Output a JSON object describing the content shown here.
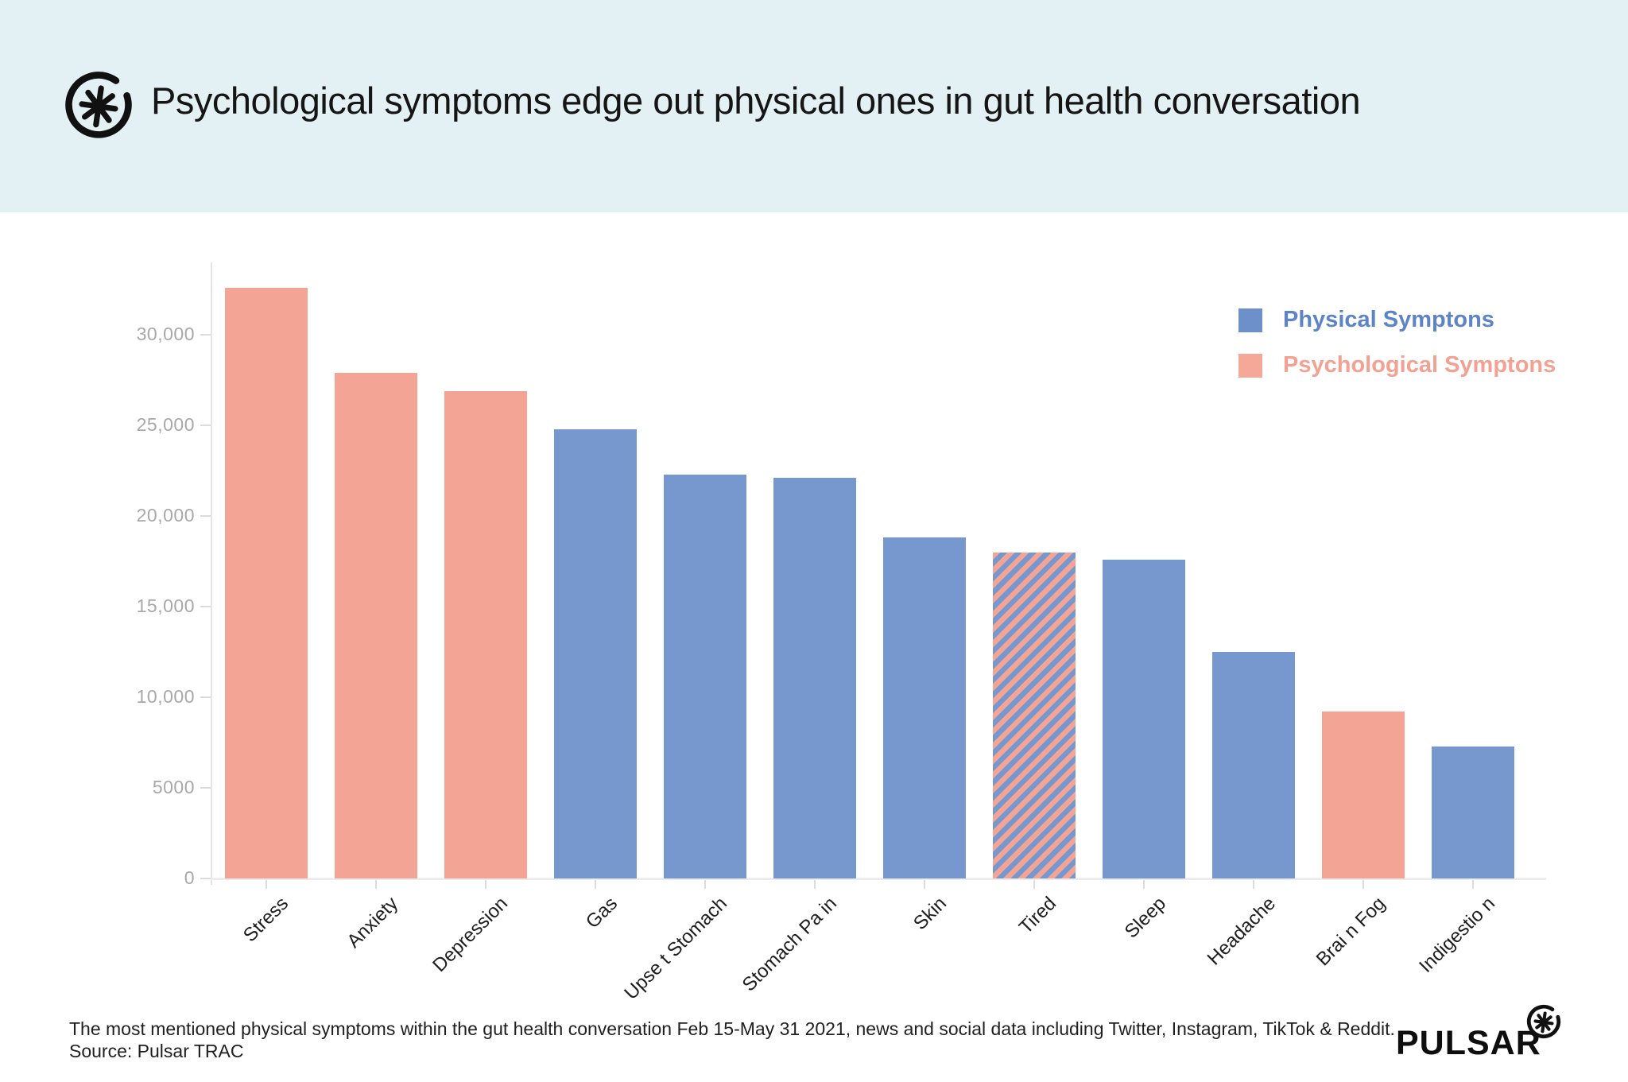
{
  "header": {
    "title": "Psychological symptoms edge out physical ones in gut health conversation"
  },
  "legend": {
    "items": [
      {
        "label": "Physical Symptons",
        "color": "#6e90ca",
        "text_color": "#5c84c7"
      },
      {
        "label": "Psychological Symptons",
        "color": "#f5a898",
        "text_color": "#f2a192"
      }
    ]
  },
  "chart_data": {
    "type": "bar",
    "title": "Psychological symptoms edge out physical ones in gut health conversation",
    "categories": [
      "Stress",
      "Anxiety",
      "Depression",
      "Gas",
      "Upse t Stomach",
      "Stomach Pa in",
      "Skin",
      "Tired",
      "Sleep",
      "Headache",
      "Brai n Fog",
      "Indigestio n"
    ],
    "values": [
      32600,
      27900,
      26900,
      24800,
      22300,
      22100,
      18800,
      18000,
      17600,
      12500,
      9200,
      7300
    ],
    "bar_series": [
      "psychological",
      "psychological",
      "psychological",
      "physical",
      "physical",
      "physical",
      "physical",
      "both",
      "physical",
      "physical",
      "psychological",
      "physical"
    ],
    "series": [
      {
        "name": "Physical Symptons",
        "color": "#7698cf"
      },
      {
        "name": "Psychological Symptons",
        "color": "#f4a494"
      }
    ],
    "hatch_note": "Tired bar drawn with diagonal stripes mixing both series colors",
    "yticks_labels": [
      "0",
      "5000",
      "10,000",
      "15,000",
      "20,000",
      "25,000",
      "30,000"
    ],
    "yticks_values": [
      0,
      5000,
      10000,
      15000,
      20000,
      25000,
      30000
    ],
    "ylim": [
      0,
      34000
    ],
    "xlabel": "",
    "ylabel": "",
    "grid": false,
    "legend_position": "top-right"
  },
  "footer": {
    "caption": "The most mentioned physical symptoms within the gut health conversation Feb 15-May 31 2021, news and social data including Twitter, Instagram, TikTok & Reddit.",
    "source": "Source: Pulsar TRAC",
    "brand": "PULSAR"
  }
}
